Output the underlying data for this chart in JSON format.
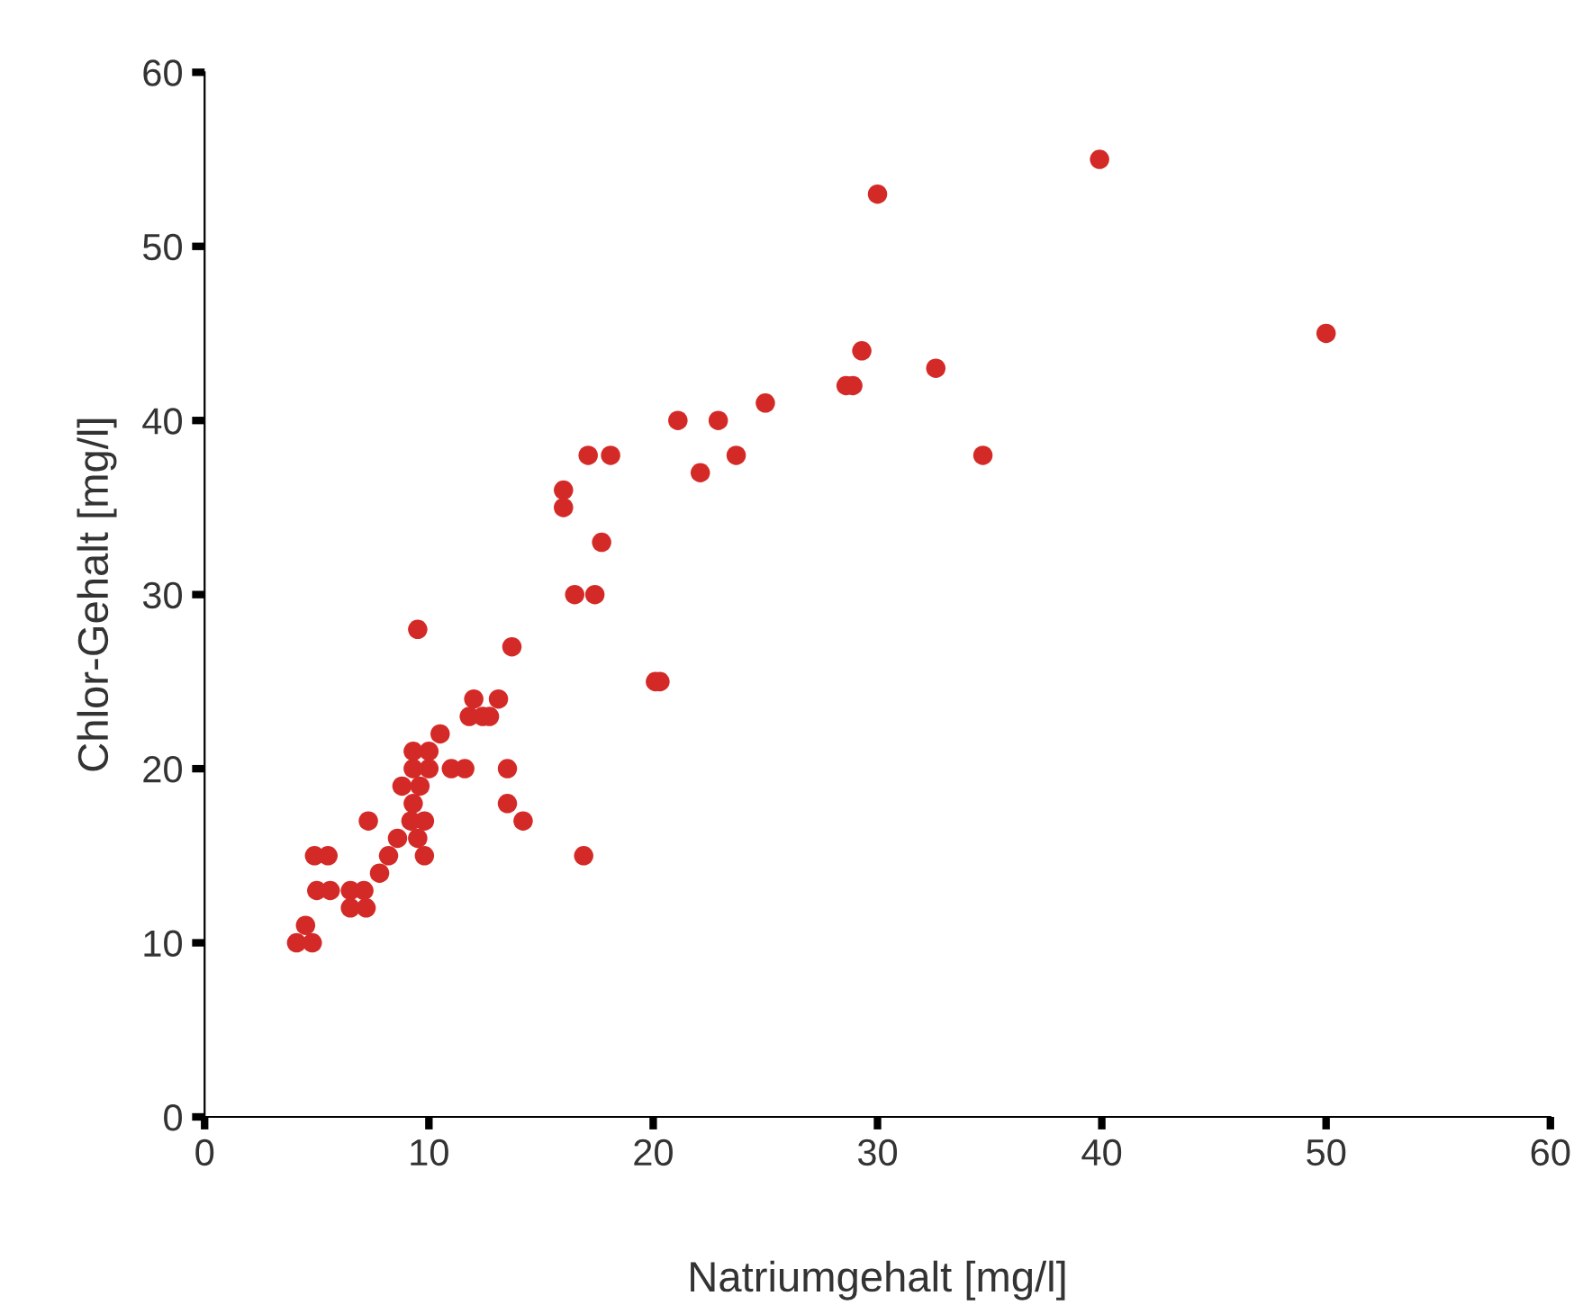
{
  "chart_data": {
    "type": "scatter",
    "xlabel": "Natriumgehalt [mg/l]",
    "ylabel": "Chlor-Gehalt [mg/l]",
    "xlim": [
      0,
      60
    ],
    "ylim": [
      0,
      60
    ],
    "xticks": [
      0,
      10,
      20,
      30,
      40,
      50,
      60
    ],
    "yticks": [
      0,
      10,
      20,
      30,
      40,
      50,
      60
    ],
    "grid": false,
    "marker": "circle",
    "series": [
      {
        "color": "#d42a27",
        "x": [
          39.9,
          30,
          50,
          29.3,
          28.6,
          28.9,
          32.6,
          25,
          21.1,
          22.9,
          22.1,
          23.7,
          34.7,
          17.1,
          18.1,
          16,
          16,
          17.7,
          16.5,
          17.4,
          20.1,
          20.3,
          9.5,
          13.7,
          12,
          13.1,
          11.8,
          12.4,
          12.7,
          10.5,
          9.3,
          10,
          11,
          11.6,
          9.3,
          10,
          13.5,
          8.8,
          9.3,
          13.5,
          14.2,
          7.3,
          9.6,
          9.2,
          9.8,
          9.5,
          9.8,
          8.6,
          8.2,
          7.8,
          16.9,
          4.9,
          5.5,
          5,
          5.6,
          6.5,
          7.1,
          6.5,
          7.2,
          4.5,
          4.1,
          4.8
        ],
        "values": [
          55,
          53,
          45,
          44,
          42,
          42,
          43,
          41,
          40,
          40,
          37,
          38,
          38,
          38,
          38,
          36,
          35,
          33,
          30,
          30,
          25,
          25,
          28,
          27,
          24,
          24,
          23,
          23,
          23,
          22,
          21,
          21,
          20,
          20,
          20,
          20,
          20,
          19,
          18,
          18,
          17,
          17,
          19,
          17,
          17,
          16,
          15,
          16,
          15,
          14,
          15,
          15,
          15,
          13,
          13,
          13,
          13,
          12,
          12,
          11,
          10,
          10
        ]
      }
    ]
  }
}
